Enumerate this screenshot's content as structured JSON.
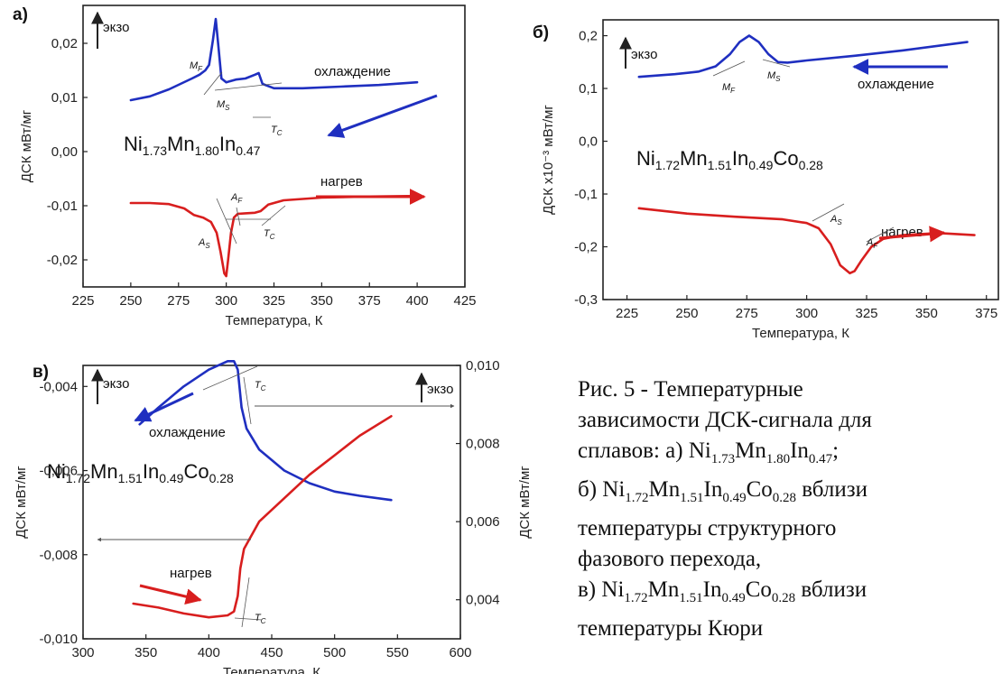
{
  "colors": {
    "cooling": "#1f2fc0",
    "heating": "#d81e1e",
    "axis": "#222222",
    "thin": "#555555"
  },
  "chart_data": [
    {
      "panel": "а)",
      "type": "line",
      "xlabel": "Температура, К",
      "ylabel": "ДСК мВт/мг",
      "xlim": [
        225,
        425
      ],
      "ylim": [
        -0.025,
        0.027
      ],
      "xticks": [
        "225",
        "250",
        "275",
        "300",
        "325",
        "350",
        "375",
        "400",
        "425"
      ],
      "yticks": [
        "0,02",
        "0,01",
        "0,00",
        "-0,01",
        "-0,02"
      ],
      "ytick_values": [
        0.02,
        0.01,
        0.0,
        -0.01,
        -0.02
      ],
      "xtick_values": [
        225,
        250,
        275,
        300,
        325,
        350,
        375,
        400,
        425
      ],
      "formula": {
        "el1": "Ni",
        "s1": "1.73",
        "el2": "Mn",
        "s2": "1.80",
        "el3": "In",
        "s3": "0.47"
      },
      "annotations": {
        "exo": "экзо",
        "cooling": "охлаждение",
        "heating": "нагрев",
        "Mf": "M",
        "Mf_sub": "F",
        "Ms": "M",
        "Ms_sub": "S",
        "Tc": "T",
        "Tc_sub": "C",
        "As": "A",
        "As_sub": "S",
        "Af": "A",
        "Af_sub": "F"
      },
      "series": [
        {
          "name": "охлаждение",
          "x": [
            250,
            260,
            270,
            276,
            282,
            286,
            289,
            291,
            293,
            294.5,
            296,
            297.5,
            300,
            305,
            310,
            315,
            317,
            319,
            325,
            340,
            360,
            380,
            400
          ],
          "y": [
            0.0095,
            0.0102,
            0.0115,
            0.0125,
            0.0135,
            0.0142,
            0.015,
            0.016,
            0.0205,
            0.0245,
            0.019,
            0.0135,
            0.0128,
            0.0133,
            0.0135,
            0.0142,
            0.0145,
            0.0125,
            0.0117,
            0.0117,
            0.012,
            0.0123,
            0.0128
          ]
        },
        {
          "name": "нагрев",
          "x": [
            250,
            260,
            270,
            278,
            283,
            288,
            292,
            295,
            297,
            299,
            300,
            301,
            302.5,
            304,
            306,
            310,
            315,
            318,
            322,
            330,
            350,
            375,
            400
          ],
          "y": [
            -0.0095,
            -0.0095,
            -0.0097,
            -0.0105,
            -0.0117,
            -0.0122,
            -0.013,
            -0.015,
            -0.0185,
            -0.0225,
            -0.023,
            -0.02,
            -0.015,
            -0.0122,
            -0.0115,
            -0.0114,
            -0.0113,
            -0.011,
            -0.0098,
            -0.009,
            -0.0085,
            -0.0083,
            -0.0082
          ]
        }
      ]
    },
    {
      "panel": "б)",
      "type": "line",
      "xlabel": "Температура, К",
      "ylabel": "ДСК х10⁻³ мВт/мг",
      "xlim": [
        215,
        380
      ],
      "ylim": [
        -0.3,
        0.23
      ],
      "xticks": [
        "225",
        "250",
        "275",
        "300",
        "325",
        "350",
        "375"
      ],
      "xtick_values": [
        225,
        250,
        275,
        300,
        325,
        350,
        375
      ],
      "yticks": [
        "0,2",
        "0,1",
        "0,0",
        "-0,1",
        "-0,2",
        "-0,3"
      ],
      "ytick_values": [
        0.2,
        0.1,
        0.0,
        -0.1,
        -0.2,
        -0.3
      ],
      "formula": {
        "el1": "Ni",
        "s1": "1.72",
        "el2": "Mn",
        "s2": "1.51",
        "el3": "In",
        "s3": "0.49",
        "el4": "Co",
        "s4": "0.28"
      },
      "annotations": {
        "exo": "экзо",
        "cooling": "охлаждение",
        "heating": "нагрев",
        "Mf": "M",
        "Mf_sub": "F",
        "Ms": "M",
        "Ms_sub": "S",
        "As": "A",
        "As_sub": "S",
        "Af": "A",
        "Af_sub": "F"
      },
      "series": [
        {
          "name": "охлаждение",
          "x": [
            230,
            245,
            255,
            262,
            268,
            272,
            276,
            280,
            284,
            288,
            292,
            300,
            320,
            340,
            367
          ],
          "y": [
            0.122,
            0.127,
            0.132,
            0.142,
            0.165,
            0.188,
            0.2,
            0.188,
            0.165,
            0.15,
            0.149,
            0.153,
            0.162,
            0.172,
            0.188
          ]
        },
        {
          "name": "нагрев",
          "x": [
            230,
            250,
            270,
            290,
            300,
            305,
            310,
            314,
            318,
            320,
            323,
            327,
            332,
            340,
            355,
            370
          ],
          "y": [
            -0.127,
            -0.137,
            -0.143,
            -0.148,
            -0.155,
            -0.165,
            -0.195,
            -0.235,
            -0.25,
            -0.246,
            -0.225,
            -0.2,
            -0.185,
            -0.178,
            -0.174,
            -0.178
          ]
        }
      ]
    },
    {
      "panel": "в)",
      "type": "line",
      "xlabel": "Температура, К",
      "ylabel_left": "ДСК мВт/мг",
      "ylabel_right": "ДСК мВт/мг",
      "xlim": [
        300,
        600
      ],
      "ylim_left": [
        -0.01,
        -0.0035
      ],
      "ylim_right": [
        0.003,
        0.01
      ],
      "xticks": [
        "300",
        "350",
        "400",
        "450",
        "500",
        "550",
        "600"
      ],
      "xtick_values": [
        300,
        350,
        400,
        450,
        500,
        550,
        600
      ],
      "yticks_left": [
        "-0,004",
        "-0,006",
        "-0,008",
        "-0,010"
      ],
      "ytick_values_left": [
        -0.004,
        -0.006,
        -0.008,
        -0.01
      ],
      "yticks_right": [
        "0,010",
        "0,008",
        "0,006",
        "0,004"
      ],
      "ytick_values_right": [
        0.01,
        0.008,
        0.006,
        0.004
      ],
      "formula": {
        "el1": "Ni",
        "s1": "1.72",
        "el2": "Mn",
        "s2": "1.51",
        "el3": "In",
        "s3": "0.49",
        "el4": "Co",
        "s4": "0.28"
      },
      "annotations": {
        "exo": "экзо",
        "cooling": "охлаждение",
        "heating": "нагрев",
        "Tc": "T",
        "Tc_sub": "C"
      },
      "series": [
        {
          "name": "охлаждение",
          "axis": "left",
          "x": [
            345,
            360,
            380,
            400,
            415,
            420,
            423,
            426,
            430,
            440,
            460,
            480,
            500,
            520,
            545
          ],
          "y": [
            -0.0049,
            -0.0045,
            -0.004,
            -0.0036,
            -0.0034,
            -0.0034,
            -0.0036,
            -0.0045,
            -0.005,
            -0.0055,
            -0.006,
            -0.0063,
            -0.0065,
            -0.0066,
            -0.0067
          ]
        },
        {
          "name": "нагрев",
          "axis": "right",
          "x": [
            340,
            360,
            380,
            400,
            415,
            420,
            423,
            425,
            428,
            440,
            460,
            480,
            500,
            520,
            545
          ],
          "y": [
            0.0039,
            0.0038,
            0.00365,
            0.00355,
            0.0036,
            0.0037,
            0.0041,
            0.0048,
            0.0053,
            0.006,
            0.0066,
            0.0072,
            0.0077,
            0.0082,
            0.0087
          ]
        }
      ]
    }
  ],
  "caption": {
    "line1": "Рис. 5 - Температурные",
    "line2": "зависимости ДСК-сигнала для",
    "line3_prefix": "сплавов: а) ",
    "line4_prefix": "б) ",
    "line4_suffix": " вблизи",
    "line5": "температуры структурного",
    "line6": "фазового перехода,",
    "line7_prefix": "в) ",
    "line7_suffix": " вблизи",
    "line8": "температуры Кюри",
    "f1": {
      "el1": "Ni",
      "s1": "1.73",
      "el2": "Mn",
      "s2": "1.80",
      "el3": "In",
      "s3": "0.47",
      "end": ";"
    },
    "f2": {
      "el1": "Ni",
      "s1": "1.72",
      "el2": "Mn",
      "s2": "1.51",
      "el3": "In",
      "s3": "0.49",
      "el4": "Co",
      "s4": "0.28"
    }
  }
}
